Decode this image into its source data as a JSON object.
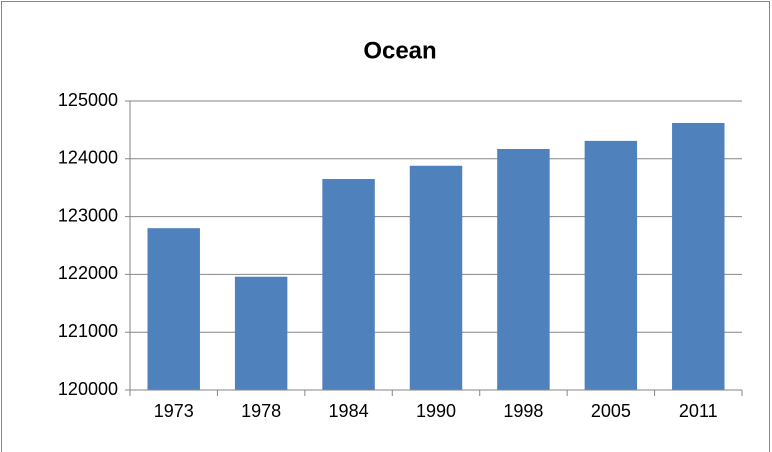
{
  "chart_data": {
    "type": "bar",
    "title": "Ocean",
    "categories": [
      "1973",
      "1978",
      "1984",
      "1990",
      "1998",
      "2005",
      "2011"
    ],
    "values": [
      122800,
      121960,
      123650,
      123880,
      124170,
      124310,
      124620
    ],
    "color": "#4f81bd",
    "ylim": [
      120000,
      125000
    ],
    "yticks": [
      120000,
      121000,
      122000,
      123000,
      124000,
      125000
    ],
    "grid": true
  }
}
